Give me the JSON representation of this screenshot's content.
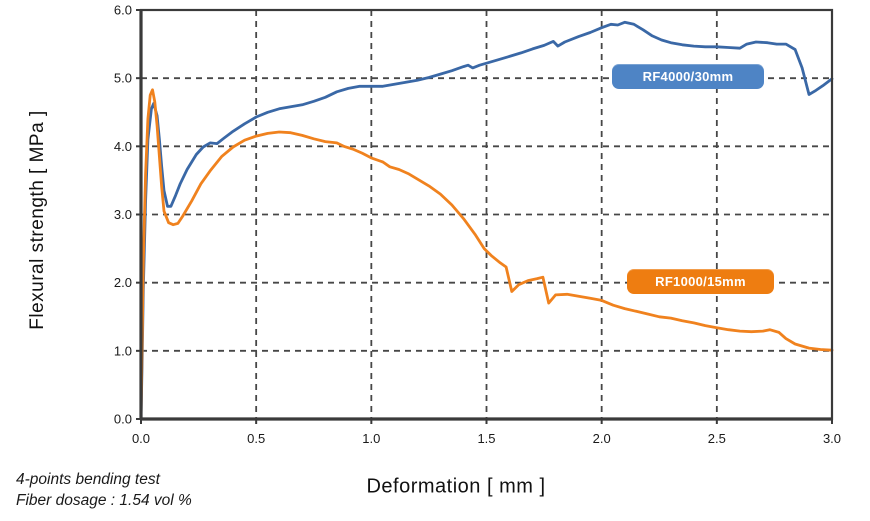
{
  "chart": {
    "colors": {
      "series_blue": "#3A68A6",
      "series_orange": "#F0821E",
      "badge_blue": "#4E84C5",
      "badge_orange": "#EE7D11",
      "grid": "#474747",
      "frame": "#3A3A3A",
      "tick_text": "#1A1A1A"
    }
  },
  "chart_data": {
    "type": "line",
    "title": "",
    "xlabel": "Deformation [ mm ]",
    "ylabel": "Flexural strength [ MPa ]",
    "xlim": [
      0,
      3
    ],
    "ylim": [
      0,
      6
    ],
    "xticks": [
      "0.0",
      "0.5",
      "1.0",
      "1.5",
      "2.0",
      "2.5",
      "3.0"
    ],
    "yticks": [
      "0.0",
      "1.0",
      "2.0",
      "3.0",
      "4.0",
      "5.0",
      "6.0"
    ],
    "grid": true,
    "grid_style": "dashed",
    "legend": {
      "position": "inline-badges",
      "entries": [
        "RF4000/30mm",
        "RF1000/15mm"
      ]
    },
    "annotations": [
      "4-points bending test",
      "Fiber dosage : 1.54 vol %"
    ],
    "series": [
      {
        "name": "RF4000/30mm",
        "color": "#3A68A6",
        "points": [
          [
            0.0,
            0.0
          ],
          [
            0.005,
            0.9
          ],
          [
            0.01,
            1.9
          ],
          [
            0.02,
            3.2
          ],
          [
            0.03,
            4.1
          ],
          [
            0.045,
            4.55
          ],
          [
            0.055,
            4.63
          ],
          [
            0.07,
            4.45
          ],
          [
            0.08,
            4.1
          ],
          [
            0.09,
            3.7
          ],
          [
            0.1,
            3.35
          ],
          [
            0.115,
            3.12
          ],
          [
            0.13,
            3.12
          ],
          [
            0.15,
            3.28
          ],
          [
            0.17,
            3.45
          ],
          [
            0.2,
            3.66
          ],
          [
            0.24,
            3.88
          ],
          [
            0.27,
            3.99
          ],
          [
            0.3,
            4.05
          ],
          [
            0.33,
            4.04
          ],
          [
            0.36,
            4.12
          ],
          [
            0.4,
            4.22
          ],
          [
            0.45,
            4.33
          ],
          [
            0.5,
            4.43
          ],
          [
            0.55,
            4.5
          ],
          [
            0.6,
            4.55
          ],
          [
            0.65,
            4.58
          ],
          [
            0.7,
            4.61
          ],
          [
            0.75,
            4.66
          ],
          [
            0.8,
            4.72
          ],
          [
            0.85,
            4.8
          ],
          [
            0.9,
            4.85
          ],
          [
            0.95,
            4.88
          ],
          [
            1.0,
            4.88
          ],
          [
            1.05,
            4.88
          ],
          [
            1.1,
            4.91
          ],
          [
            1.15,
            4.94
          ],
          [
            1.2,
            4.97
          ],
          [
            1.25,
            5.01
          ],
          [
            1.3,
            5.06
          ],
          [
            1.35,
            5.11
          ],
          [
            1.4,
            5.17
          ],
          [
            1.42,
            5.19
          ],
          [
            1.44,
            5.15
          ],
          [
            1.47,
            5.19
          ],
          [
            1.5,
            5.22
          ],
          [
            1.55,
            5.27
          ],
          [
            1.6,
            5.32
          ],
          [
            1.65,
            5.37
          ],
          [
            1.7,
            5.43
          ],
          [
            1.75,
            5.48
          ],
          [
            1.79,
            5.54
          ],
          [
            1.81,
            5.47
          ],
          [
            1.84,
            5.53
          ],
          [
            1.9,
            5.61
          ],
          [
            1.95,
            5.67
          ],
          [
            2.0,
            5.74
          ],
          [
            2.04,
            5.79
          ],
          [
            2.07,
            5.78
          ],
          [
            2.1,
            5.82
          ],
          [
            2.14,
            5.79
          ],
          [
            2.18,
            5.71
          ],
          [
            2.22,
            5.62
          ],
          [
            2.26,
            5.56
          ],
          [
            2.3,
            5.52
          ],
          [
            2.35,
            5.49
          ],
          [
            2.4,
            5.47
          ],
          [
            2.45,
            5.46
          ],
          [
            2.5,
            5.46
          ],
          [
            2.55,
            5.45
          ],
          [
            2.6,
            5.44
          ],
          [
            2.63,
            5.5
          ],
          [
            2.67,
            5.53
          ],
          [
            2.72,
            5.52
          ],
          [
            2.76,
            5.5
          ],
          [
            2.8,
            5.5
          ],
          [
            2.84,
            5.42
          ],
          [
            2.87,
            5.15
          ],
          [
            2.9,
            4.76
          ],
          [
            2.93,
            4.82
          ],
          [
            2.96,
            4.89
          ],
          [
            3.0,
            4.99
          ]
        ]
      },
      {
        "name": "RF1000/15mm",
        "color": "#F0821E",
        "points": [
          [
            0.0,
            0.0
          ],
          [
            0.005,
            1.2
          ],
          [
            0.01,
            2.3
          ],
          [
            0.02,
            3.6
          ],
          [
            0.03,
            4.4
          ],
          [
            0.04,
            4.75
          ],
          [
            0.05,
            4.83
          ],
          [
            0.06,
            4.65
          ],
          [
            0.07,
            4.3
          ],
          [
            0.08,
            3.85
          ],
          [
            0.09,
            3.4
          ],
          [
            0.1,
            3.05
          ],
          [
            0.12,
            2.88
          ],
          [
            0.14,
            2.85
          ],
          [
            0.16,
            2.87
          ],
          [
            0.18,
            2.97
          ],
          [
            0.22,
            3.2
          ],
          [
            0.26,
            3.45
          ],
          [
            0.3,
            3.64
          ],
          [
            0.35,
            3.85
          ],
          [
            0.4,
            3.99
          ],
          [
            0.45,
            4.09
          ],
          [
            0.5,
            4.15
          ],
          [
            0.55,
            4.19
          ],
          [
            0.6,
            4.21
          ],
          [
            0.65,
            4.2
          ],
          [
            0.7,
            4.16
          ],
          [
            0.75,
            4.11
          ],
          [
            0.8,
            4.07
          ],
          [
            0.85,
            4.05
          ],
          [
            0.88,
            4.0
          ],
          [
            0.92,
            3.96
          ],
          [
            0.96,
            3.9
          ],
          [
            1.0,
            3.83
          ],
          [
            1.05,
            3.77
          ],
          [
            1.08,
            3.7
          ],
          [
            1.12,
            3.66
          ],
          [
            1.16,
            3.6
          ],
          [
            1.2,
            3.52
          ],
          [
            1.25,
            3.42
          ],
          [
            1.3,
            3.3
          ],
          [
            1.35,
            3.14
          ],
          [
            1.4,
            2.94
          ],
          [
            1.45,
            2.71
          ],
          [
            1.49,
            2.5
          ],
          [
            1.52,
            2.4
          ],
          [
            1.56,
            2.29
          ],
          [
            1.585,
            2.23
          ],
          [
            1.61,
            1.87
          ],
          [
            1.64,
            1.97
          ],
          [
            1.68,
            2.03
          ],
          [
            1.72,
            2.06
          ],
          [
            1.745,
            2.08
          ],
          [
            1.77,
            1.7
          ],
          [
            1.8,
            1.82
          ],
          [
            1.85,
            1.83
          ],
          [
            1.9,
            1.8
          ],
          [
            1.95,
            1.77
          ],
          [
            2.0,
            1.74
          ],
          [
            2.05,
            1.67
          ],
          [
            2.1,
            1.62
          ],
          [
            2.15,
            1.58
          ],
          [
            2.2,
            1.54
          ],
          [
            2.25,
            1.5
          ],
          [
            2.3,
            1.48
          ],
          [
            2.35,
            1.44
          ],
          [
            2.4,
            1.41
          ],
          [
            2.45,
            1.37
          ],
          [
            2.5,
            1.34
          ],
          [
            2.55,
            1.31
          ],
          [
            2.6,
            1.29
          ],
          [
            2.65,
            1.28
          ],
          [
            2.7,
            1.29
          ],
          [
            2.73,
            1.31
          ],
          [
            2.77,
            1.27
          ],
          [
            2.8,
            1.18
          ],
          [
            2.84,
            1.1
          ],
          [
            2.9,
            1.04
          ],
          [
            2.95,
            1.02
          ],
          [
            3.0,
            1.01
          ]
        ]
      }
    ]
  }
}
